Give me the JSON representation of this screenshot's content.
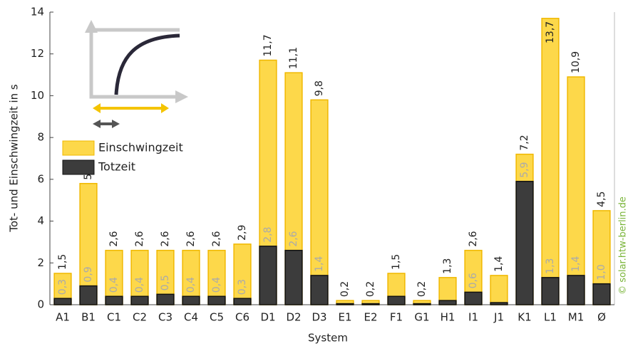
{
  "chart_data": {
    "type": "bar",
    "x_label": "System",
    "y_label": "Tot- und Einschwingzeit in s",
    "watermark": "© solar.htw-berlin.de",
    "categories": [
      "A1",
      "B1",
      "C1",
      "C2",
      "C3",
      "C4",
      "C5",
      "C6",
      "D1",
      "D2",
      "D3",
      "E1",
      "E2",
      "F1",
      "G1",
      "H1",
      "I1",
      "J1",
      "K1",
      "L1",
      "M1",
      "Ø"
    ],
    "series": [
      {
        "name": "Einschwingzeit",
        "color": "#fdd84a",
        "edge": "#f0b800",
        "values": [
          1.5,
          5.8,
          2.6,
          2.6,
          2.6,
          2.6,
          2.6,
          2.9,
          11.7,
          11.1,
          9.8,
          0.2,
          0.2,
          1.5,
          0.2,
          1.3,
          2.6,
          1.4,
          7.2,
          13.7,
          10.9,
          4.5
        ],
        "value_labels": [
          "1,5",
          "5,8",
          "2,6",
          "2,6",
          "2,6",
          "2,6",
          "2,6",
          "2,9",
          "11,7",
          "11,1",
          "9,8",
          "0,2",
          "0,2",
          "1,5",
          "0,2",
          "1,3",
          "2,6",
          "1,4",
          "7,2",
          "13,7",
          "10,9",
          "4,5"
        ]
      },
      {
        "name": "Totzeit",
        "color": "#3c3c3c",
        "edge": "#111111",
        "values": [
          0.3,
          0.9,
          0.4,
          0.4,
          0.5,
          0.4,
          0.4,
          0.3,
          2.8,
          2.6,
          1.4,
          0.05,
          0.05,
          0.4,
          0.05,
          0.2,
          0.6,
          0.1,
          5.9,
          1.3,
          1.4,
          1.0
        ],
        "value_labels": [
          "0,3",
          "0,9",
          "0,4",
          "0,4",
          "0,5",
          "0,4",
          "0,4",
          "0,3",
          "2,8",
          "2,6",
          "1,4",
          null,
          null,
          null,
          null,
          null,
          "0,6",
          null,
          "5,9",
          "1,3",
          "1,4",
          "1,0"
        ]
      }
    ],
    "ylim": [
      0,
      14
    ],
    "yticks": [
      0,
      2,
      4,
      6,
      8,
      10,
      12,
      14
    ],
    "grid": false
  }
}
